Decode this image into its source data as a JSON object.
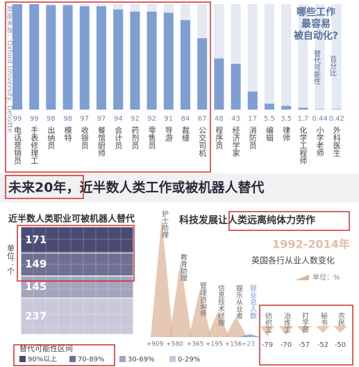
{
  "headline": "未来20年，近半数人类工作或被机器人替代",
  "chart_data": [
    {
      "type": "bar",
      "title": [
        "哪些工作",
        "最容易",
        "被自动化?"
      ],
      "source": "数据来源：Oxford University, Deloitte",
      "y_label": "替代可能性",
      "unit": "百分比",
      "color": "#7f9fd3",
      "track_color": "#e4e9f2",
      "categories": [
        "电话营销员",
        "手表修理工",
        "出纳员",
        "模特",
        "收银员",
        "餐馆厨师",
        "会计员",
        "药剂员",
        "零售员",
        "导游",
        "裁缝",
        "公交司机",
        "程序员",
        "经济学家",
        "消防员",
        "编辑",
        "律师",
        "化学工程师",
        "小学老师",
        "外科医生"
      ],
      "values": [
        99,
        99,
        98,
        98,
        97,
        97,
        94,
        92,
        92,
        91,
        84,
        67,
        48,
        43,
        17,
        5.5,
        3.5,
        1.7,
        0.44,
        0.42
      ]
    },
    {
      "type": "stack",
      "title": "近半数人类职业可被机器人替代",
      "unit": "单位：个",
      "legend_title": "替代可能性区间",
      "series": [
        {
          "name": "90%以上",
          "color": "#4a4a72",
          "values": [
            171
          ]
        },
        {
          "name": "70-89%",
          "color": "#6f6f92",
          "values": [
            149
          ]
        },
        {
          "name": "30-69%",
          "color": "#a4a4bd",
          "values": [
            145
          ]
        },
        {
          "name": "0-29%",
          "color": "#c8c8d9",
          "values": [
            237
          ]
        }
      ]
    },
    {
      "type": "triangle",
      "title": "科技发展让人类远离纯体力劳作",
      "subtitle": "1992-2014年",
      "subtitle2": "英国各行从业人数变化",
      "unit": "单位：%",
      "categories": [
        "护士助理",
        "教育助理",
        "管理咨询师",
        "信息技术经理",
        "娱乐从业者",
        "就业总人数",
        "纺织工",
        "冶炼工",
        "打字员",
        "秘书",
        "农民"
      ],
      "values": [
        909,
        580,
        365,
        195,
        156,
        23,
        -79,
        -70,
        -57,
        -52,
        -50
      ],
      "value_labels": [
        "+909",
        "+580",
        "+365",
        "+195",
        "+156",
        "+23",
        "-79",
        "-70",
        "-57",
        "-52",
        "-50"
      ],
      "colors": [
        "#dcb79c",
        "#dcb79c",
        "#dcb79c",
        "#dcb79c",
        "#dcb79c",
        "#6f9ad6",
        "#dcb79c",
        "#dcb79c",
        "#dcb79c",
        "#dcb79c",
        "#dcb79c"
      ]
    }
  ]
}
